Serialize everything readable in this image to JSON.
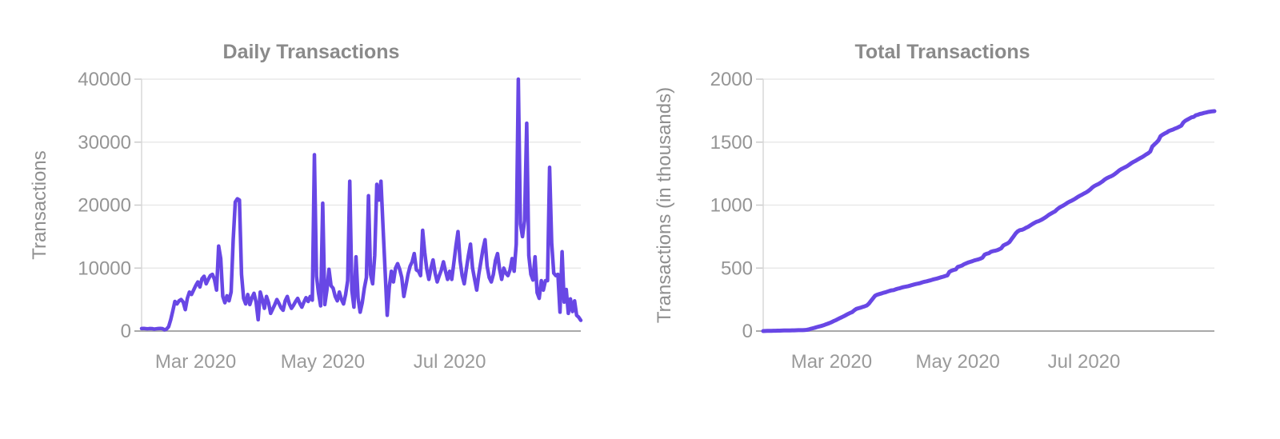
{
  "colors": {
    "line": "#6847e5",
    "grid": "#e9e9e9",
    "tick_stub": "#cbcbcb",
    "y_axis_line": "#d8d8d8",
    "x_axis_line": "#a9a9a9",
    "title_text": "#8a8a8a",
    "tick_text": "#959595",
    "month_text": "#9a9a9a",
    "y_label_text": "#8f8f8f",
    "background": "#ffffff"
  },
  "charts": [
    {
      "title": "Daily Transactions",
      "y_axis_label": "Transactions",
      "y_tick_labels": [
        "40000",
        "30000",
        "20000",
        "10000",
        "0"
      ],
      "x_tick_labels": [
        "Mar 2020",
        "May 2020",
        "Jul 2020"
      ]
    },
    {
      "title": "Total Transactions",
      "y_axis_label": "Transactions (in thousands)",
      "y_tick_labels": [
        "2000",
        "1500",
        "1000",
        "500",
        "0"
      ],
      "x_tick_labels": [
        "Mar 2020",
        "May 2020",
        "Jul 2020"
      ]
    }
  ],
  "chart_data": [
    {
      "type": "line",
      "title": "Daily Transactions",
      "xlabel": "",
      "ylabel": "Transactions",
      "ylim": [
        0,
        40000
      ],
      "y_ticks": [
        0,
        10000,
        20000,
        30000,
        40000
      ],
      "grid": "horizontal",
      "legend": "none",
      "x_start_date": "2020-02-04",
      "x_tick_labels": [
        "Mar 2020",
        "May 2020",
        "Jul 2020"
      ],
      "x_tick_indices": [
        26,
        87,
        148
      ],
      "values": [
        400,
        420,
        380,
        350,
        400,
        380,
        300,
        350,
        400,
        420,
        380,
        200,
        300,
        700,
        1800,
        3200,
        4700,
        4300,
        4800,
        5000,
        4600,
        3400,
        5200,
        6200,
        5800,
        6500,
        7200,
        7800,
        7000,
        8300,
        8700,
        7500,
        8200,
        8800,
        9000,
        8200,
        6500,
        13500,
        11500,
        5500,
        4500,
        5600,
        4800,
        6200,
        14500,
        20500,
        21000,
        20800,
        9000,
        5200,
        4300,
        5800,
        4200,
        5300,
        6000,
        4600,
        1800,
        6200,
        5000,
        3600,
        5500,
        4500,
        2800,
        3500,
        4200,
        5000,
        4400,
        3700,
        3300,
        4800,
        5500,
        4300,
        3600,
        4100,
        4700,
        5200,
        4400,
        3800,
        4600,
        5300,
        4700,
        5500,
        4900,
        28000,
        8700,
        6000,
        4000,
        20300,
        4200,
        6500,
        9800,
        7200,
        6800,
        5500,
        4800,
        6200,
        5000,
        4300,
        5800,
        8000,
        23800,
        6500,
        3800,
        11800,
        5200,
        3000,
        4500,
        6800,
        8500,
        21500,
        9000,
        7500,
        12000,
        23300,
        20800,
        23800,
        16500,
        9500,
        2500,
        7000,
        9500,
        7800,
        10000,
        10700,
        9800,
        8500,
        5500,
        7200,
        9000,
        10300,
        11000,
        12300,
        9700,
        9500,
        8800,
        16000,
        12500,
        9800,
        8200,
        10000,
        11300,
        9200,
        7800,
        8800,
        9700,
        11000,
        9500,
        8200,
        9500,
        8200,
        10800,
        13500,
        15800,
        11200,
        8800,
        7500,
        9800,
        12000,
        13800,
        10000,
        8200,
        6500,
        9000,
        11000,
        13000,
        14500,
        10300,
        8500,
        7800,
        9000,
        11200,
        12300,
        9800,
        8200,
        10000,
        9200,
        8800,
        9700,
        11500,
        9500,
        13800,
        40000,
        17000,
        15000,
        17500,
        33000,
        12000,
        9000,
        8100,
        11800,
        6100,
        5200,
        8000,
        6500,
        8000,
        8000,
        26000,
        14000,
        9200,
        8800,
        9000,
        3000,
        12600,
        4600,
        6600,
        2800,
        5100,
        3100,
        4800,
        2500,
        2200,
        1700
      ]
    },
    {
      "type": "line",
      "title": "Total Transactions",
      "xlabel": "",
      "ylabel": "Transactions (in thousands)",
      "ylim": [
        0,
        2000
      ],
      "y_ticks": [
        0,
        500,
        1000,
        1500,
        2000
      ],
      "grid": "horizontal",
      "legend": "none",
      "derivation": "running cumulative sum of the Daily Transactions values, divided by 1000",
      "lead_in_values": [
        300,
        350,
        400,
        380,
        420,
        390,
        360
      ],
      "x_tick_labels": [
        "Mar 2020",
        "May 2020",
        "Jul 2020"
      ],
      "x_tick_indices": [
        33,
        94,
        155
      ],
      "approx_checkpoints_thousands": {
        "2020-03-01": 63,
        "2020-05-01": 495,
        "2020-07-01": 1090,
        "2020-09-02": 1740
      }
    }
  ]
}
